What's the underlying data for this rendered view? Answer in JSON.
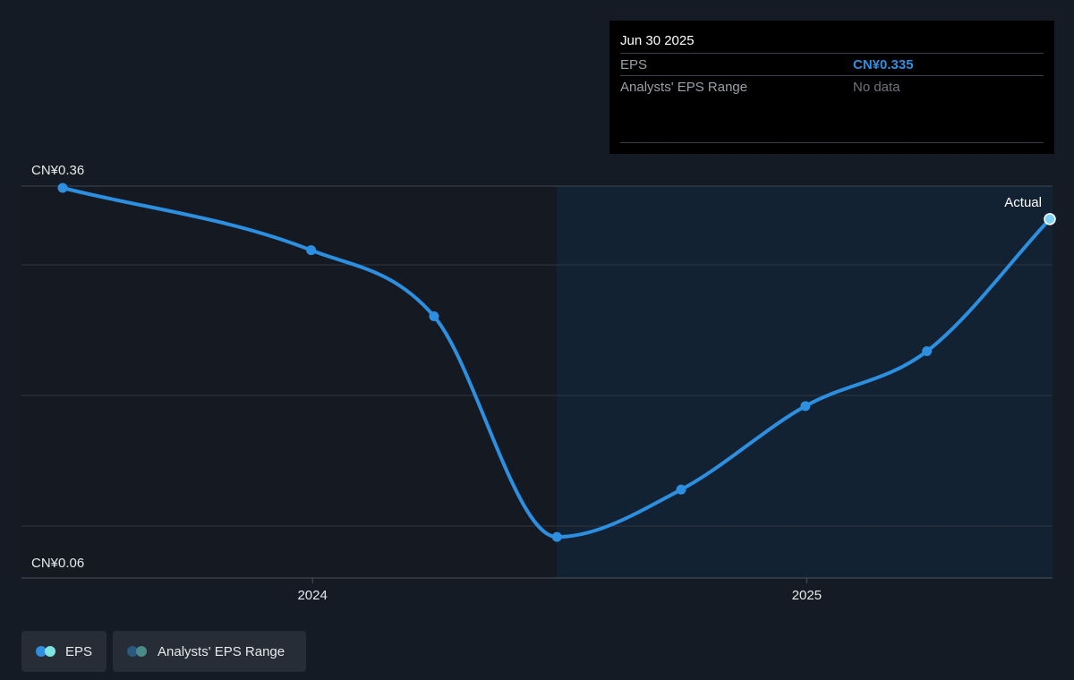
{
  "chart_data": {
    "type": "line",
    "y_labels": {
      "top": "CN¥0.36",
      "bottom": "CN¥0.06"
    },
    "ylim": [
      0.06,
      0.36
    ],
    "x_ticks": [
      {
        "label": "2024",
        "date": "2024-01-01"
      },
      {
        "label": "2025",
        "date": "2025-01-01"
      }
    ],
    "series": [
      {
        "name": "EPS",
        "color": "#2d8fe0",
        "points": [
          {
            "date": "2023-06-30",
            "value": 0.36
          },
          {
            "date": "2023-12-31",
            "value": 0.31
          },
          {
            "date": "2024-03-31",
            "value": 0.257
          },
          {
            "date": "2024-06-30",
            "value": 0.08
          },
          {
            "date": "2024-09-30",
            "value": 0.118
          },
          {
            "date": "2024-12-31",
            "value": 0.185
          },
          {
            "date": "2025-03-31",
            "value": 0.229
          },
          {
            "date": "2025-06-30",
            "value": 0.335
          }
        ]
      }
    ],
    "forecast_region_start": "2024-06-30",
    "annotation": "Actual",
    "grid": true
  },
  "tooltip": {
    "date": "Jun 30 2025",
    "eps_label": "EPS",
    "eps_value": "CN¥0.335",
    "range_label": "Analysts' EPS Range",
    "range_value": "No data"
  },
  "legend": {
    "eps_label": "EPS",
    "range_label": "Analysts' EPS Range"
  },
  "colors": {
    "background": "#151b24",
    "past_region": "#151a22",
    "future_region": "#132233",
    "line": "#2d8fe0",
    "grid": "#2e3640",
    "eps_dot_1": "#2d8fe0",
    "eps_dot_2": "#7fe3e0",
    "range_dot_1": "#2a5a80",
    "range_dot_2": "#4a8a88"
  }
}
